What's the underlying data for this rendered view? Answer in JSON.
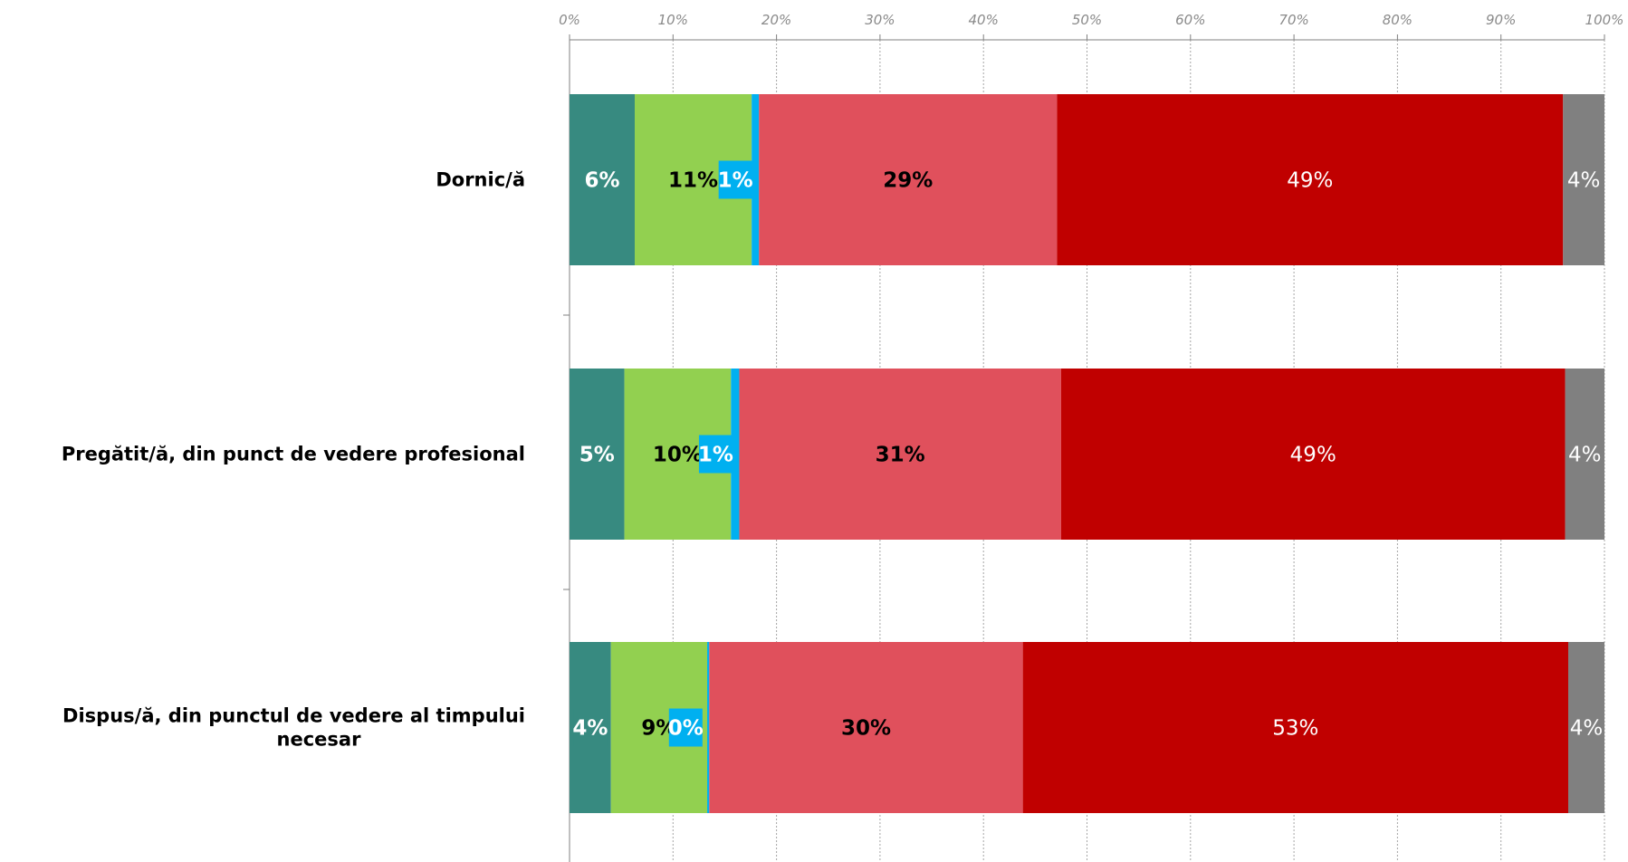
{
  "chart_data": {
    "type": "bar",
    "orientation": "horizontal",
    "stacked": true,
    "xlim": [
      0,
      100
    ],
    "x_ticks": [
      "0%",
      "10%",
      "20%",
      "30%",
      "40%",
      "50%",
      "60%",
      "70%",
      "80%",
      "90%",
      "100%"
    ],
    "grid": true,
    "categories": [
      [
        "Dornic/ă"
      ],
      [
        "Pregătit/ă, din punct de vedere profesional"
      ],
      [
        "Dispus/ă, din punctul de vedere al timpului",
        "necesar"
      ]
    ],
    "series": [
      {
        "color": "#378a80",
        "label_color": "#ffffff",
        "label_bold": true,
        "label_bg": "",
        "values": [
          6.3,
          5.3,
          4.0
        ],
        "labels": [
          "6%",
          "5%",
          "4%"
        ]
      },
      {
        "color": "#92d050",
        "label_color": "#000000",
        "label_bold": true,
        "label_bg": "",
        "values": [
          11.3,
          10.3,
          9.3
        ],
        "labels": [
          "11%",
          "10%",
          "9%"
        ]
      },
      {
        "color": "#00b0f0",
        "label_color": "#ffffff",
        "label_bold": true,
        "label_bg": "#00b0f0",
        "values": [
          0.7,
          0.8,
          0.2
        ],
        "labels": [
          "1%",
          "1%",
          "0%"
        ]
      },
      {
        "color": "#e0505c",
        "label_color": "#000000",
        "label_bold": true,
        "label_bg": "",
        "values": [
          28.8,
          31.1,
          30.3
        ],
        "labels": [
          "29%",
          "31%",
          "30%"
        ]
      },
      {
        "color": "#c00000",
        "label_color": "#ffffff",
        "label_bold": false,
        "label_bg": "",
        "values": [
          48.9,
          48.7,
          52.7
        ],
        "labels": [
          "49%",
          "49%",
          "53%"
        ]
      },
      {
        "color": "#808080",
        "label_color": "#ffffff",
        "label_bold": false,
        "label_bg": "#808080",
        "values": [
          4.0,
          3.8,
          3.5
        ],
        "labels": [
          "4%",
          "4%",
          "4%"
        ]
      }
    ]
  }
}
